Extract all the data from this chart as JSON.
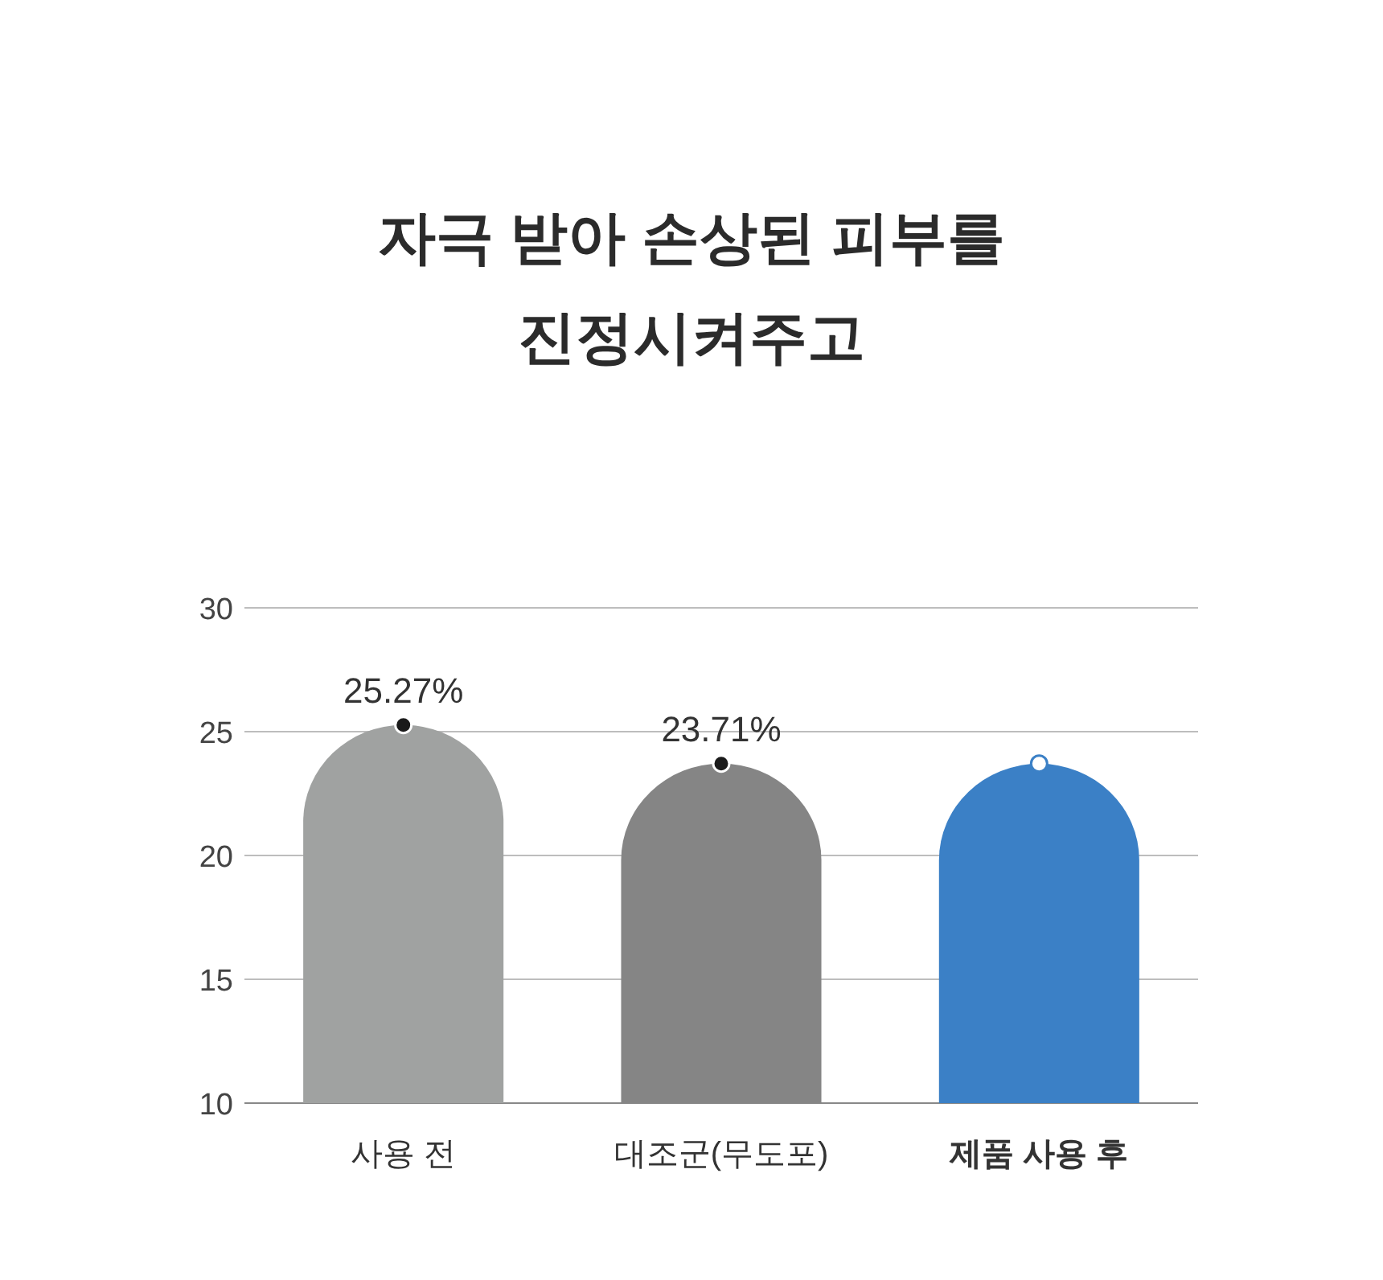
{
  "chart_data": {
    "type": "bar",
    "title": "자극 받아 손상된 피부를\n진정시켜주고",
    "categories": [
      "사용 전",
      "대조군(무도포)",
      "제품 사용 후"
    ],
    "series": [
      {
        "type": "bar",
        "values": [
          25.27,
          23.71,
          23.71
        ],
        "colors": [
          "#a0a2a1",
          "#858585",
          "#3b80c6"
        ],
        "value_labels": [
          "25.27%",
          "23.71%",
          null
        ]
      },
      {
        "type": "scatter",
        "values": [
          25.27,
          23.71,
          23.71
        ],
        "colors": [
          "#1a1a1a",
          "#1a1a1a",
          "#ffffff"
        ],
        "marker": "circle"
      }
    ],
    "ylim": [
      10,
      30
    ],
    "yticks": [
      10,
      15,
      20,
      25,
      30
    ],
    "grid": "y"
  }
}
